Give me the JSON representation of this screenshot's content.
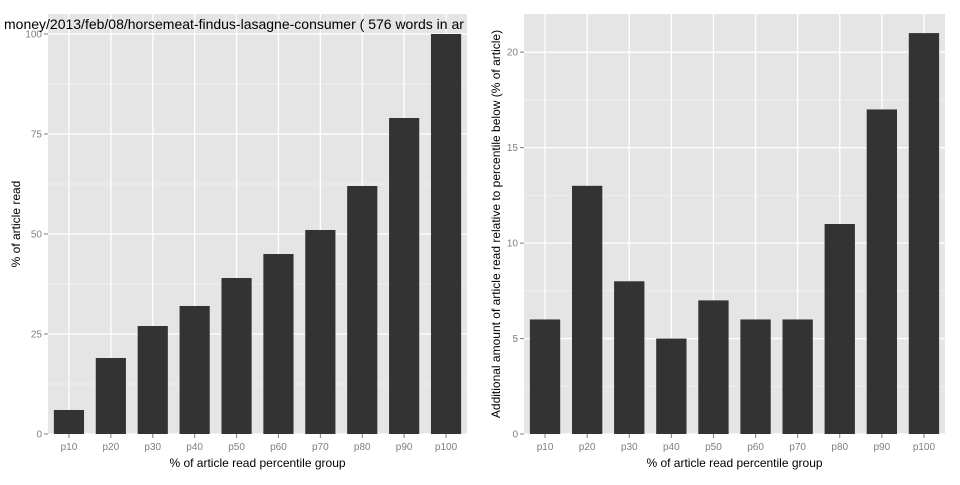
{
  "chart_data": [
    {
      "type": "bar",
      "title": "money/2013/feb/08/horsemeat-findus-lasagne-consumer ( 576 words in ar",
      "xlabel": "% of article read percentile group",
      "ylabel": "% of article read",
      "categories": [
        "p10",
        "p20",
        "p30",
        "p40",
        "p50",
        "p60",
        "p70",
        "p80",
        "p90",
        "p100"
      ],
      "values": [
        6,
        19,
        27,
        32,
        39,
        45,
        51,
        62,
        79,
        100
      ],
      "ylim": [
        0,
        105
      ],
      "yticks": [
        0,
        25,
        50,
        75,
        100
      ],
      "grid": true,
      "background": "#e5e5e5",
      "bar_color": "#333333"
    },
    {
      "type": "bar",
      "title": "",
      "xlabel": "% of article read percentile group",
      "ylabel": "Additional amount of article read relative to percentile below (% of article)",
      "categories": [
        "p10",
        "p20",
        "p30",
        "p40",
        "p50",
        "p60",
        "p70",
        "p80",
        "p90",
        "p100"
      ],
      "values": [
        6,
        13,
        8,
        5,
        7,
        6,
        6,
        11,
        17,
        21
      ],
      "ylim": [
        0,
        22
      ],
      "yticks": [
        0,
        5,
        10,
        15,
        20
      ],
      "grid": true,
      "background": "#e5e5e5",
      "bar_color": "#333333"
    }
  ]
}
